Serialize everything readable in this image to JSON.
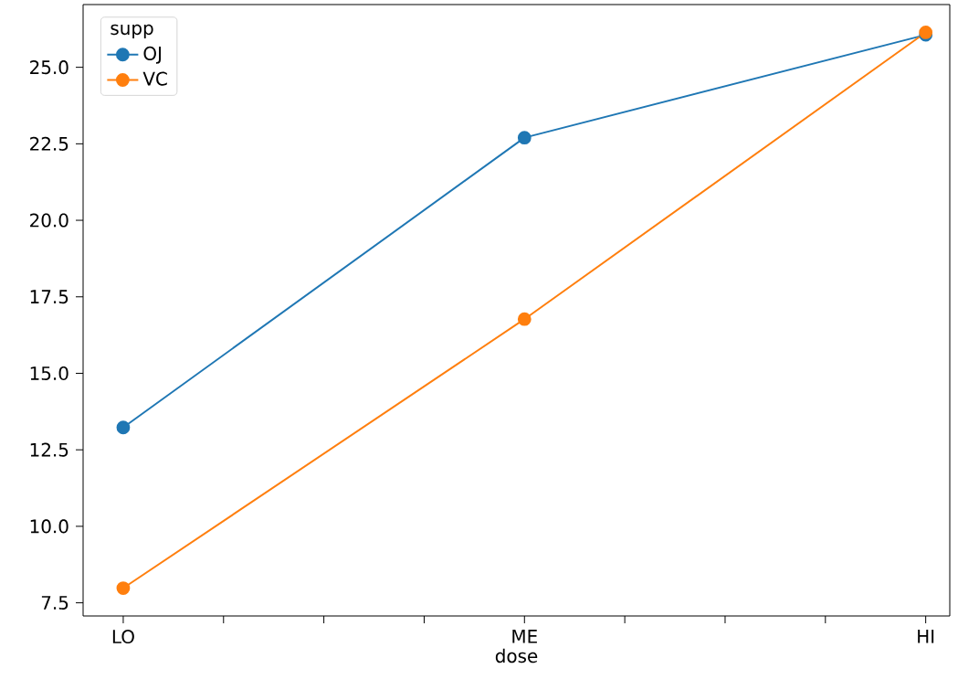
{
  "chart_data": {
    "type": "line",
    "xlabel": "dose",
    "legend_title": "supp",
    "categories": [
      "LO",
      "ME",
      "HI"
    ],
    "series": [
      {
        "name": "OJ",
        "color": "#1f77b4",
        "values": [
          13.23,
          22.7,
          26.06
        ]
      },
      {
        "name": "VC",
        "color": "#ff7f0e",
        "values": [
          7.98,
          16.77,
          26.14
        ]
      }
    ],
    "ylim": [
      7.07,
      27.05
    ],
    "yticks": [
      {
        "value": 7.5,
        "label": "7.5"
      },
      {
        "value": 10,
        "label": "10.0"
      },
      {
        "value": 12.5,
        "label": "12.5"
      },
      {
        "value": 15,
        "label": "15.0"
      },
      {
        "value": 17.5,
        "label": "17.5"
      },
      {
        "value": 20,
        "label": "20.0"
      },
      {
        "value": 22.5,
        "label": "22.5"
      },
      {
        "value": 25,
        "label": "25.0"
      }
    ],
    "legend": "top left",
    "marker": "circle",
    "line_style": "solid",
    "grid": false
  }
}
